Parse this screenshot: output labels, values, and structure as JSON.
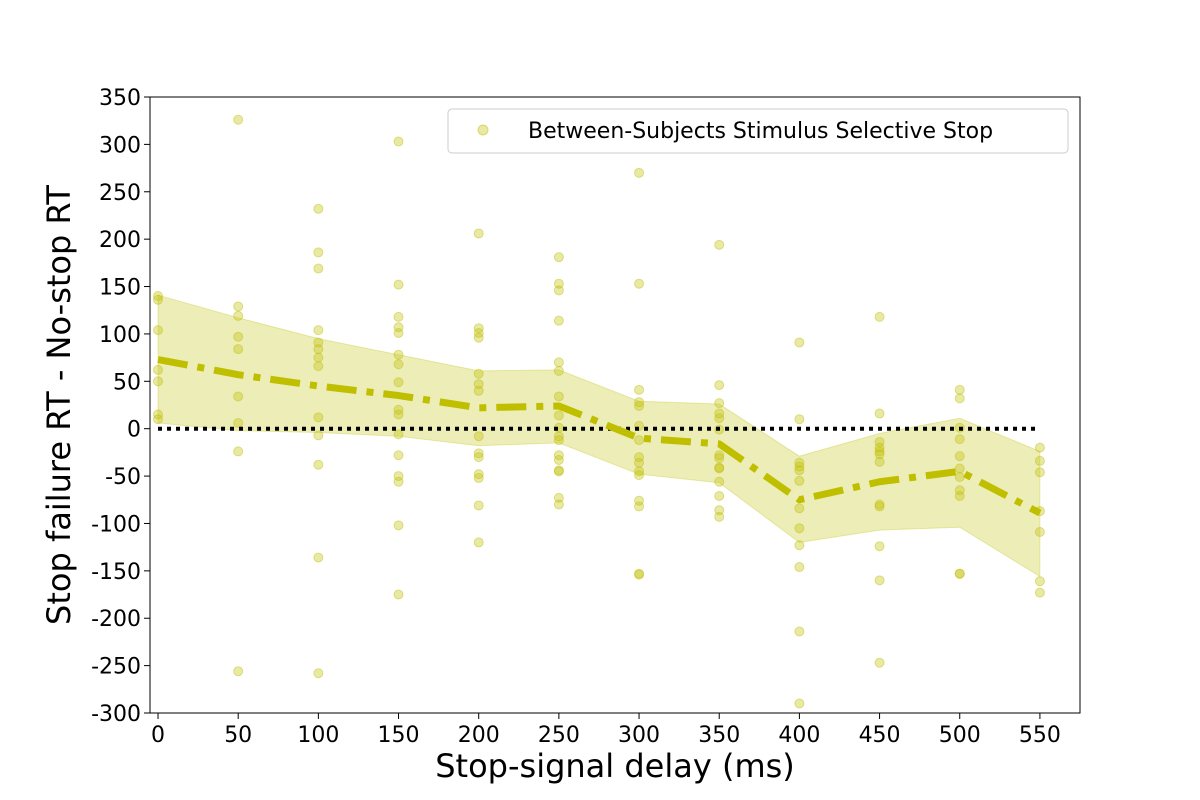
{
  "chart_data": {
    "type": "scatter",
    "xlabel": "Stop-signal delay (ms)",
    "ylabel": "Stop failure RT - No-stop RT",
    "xlim": [
      -5,
      575
    ],
    "ylim": [
      -300,
      350
    ],
    "x_ticks": [
      0,
      50,
      100,
      150,
      200,
      250,
      300,
      350,
      400,
      450,
      500,
      550
    ],
    "y_ticks": [
      -300,
      -250,
      -200,
      -150,
      -100,
      -50,
      0,
      50,
      100,
      150,
      200,
      250,
      300,
      350
    ],
    "grid": false,
    "legend": {
      "position": "top-right",
      "entries": [
        "Between-Subjects Stimulus Selective Stop"
      ]
    },
    "colors": {
      "series": "#bfbf00",
      "reference_line": "#000000"
    },
    "reference_line": {
      "y": 0,
      "x_range": [
        0,
        550
      ],
      "style": "dotted"
    },
    "series": [
      {
        "name": "Between-Subjects Stimulus Selective Stop",
        "points": [
          [
            0,
            140
          ],
          [
            0,
            136
          ],
          [
            0,
            104
          ],
          [
            0,
            62
          ],
          [
            0,
            50
          ],
          [
            0,
            15
          ],
          [
            0,
            10
          ],
          [
            50,
            326
          ],
          [
            50,
            129
          ],
          [
            50,
            119
          ],
          [
            50,
            97
          ],
          [
            50,
            84
          ],
          [
            50,
            34
          ],
          [
            50,
            6
          ],
          [
            50,
            -24
          ],
          [
            50,
            -256
          ],
          [
            100,
            232
          ],
          [
            100,
            186
          ],
          [
            100,
            169
          ],
          [
            100,
            104
          ],
          [
            100,
            91
          ],
          [
            100,
            84
          ],
          [
            100,
            75
          ],
          [
            100,
            66
          ],
          [
            100,
            12
          ],
          [
            100,
            -7
          ],
          [
            100,
            -38
          ],
          [
            100,
            -136
          ],
          [
            100,
            -258
          ],
          [
            150,
            303
          ],
          [
            150,
            152
          ],
          [
            150,
            118
          ],
          [
            150,
            107
          ],
          [
            150,
            101
          ],
          [
            150,
            78
          ],
          [
            150,
            68
          ],
          [
            150,
            49
          ],
          [
            150,
            20
          ],
          [
            150,
            15
          ],
          [
            150,
            -6
          ],
          [
            150,
            -28
          ],
          [
            150,
            -50
          ],
          [
            150,
            -56
          ],
          [
            150,
            -102
          ],
          [
            150,
            -175
          ],
          [
            200,
            206
          ],
          [
            200,
            106
          ],
          [
            200,
            101
          ],
          [
            200,
            96
          ],
          [
            200,
            58
          ],
          [
            200,
            47
          ],
          [
            200,
            40
          ],
          [
            200,
            -8
          ],
          [
            200,
            -26
          ],
          [
            200,
            -30
          ],
          [
            200,
            -48
          ],
          [
            200,
            -52
          ],
          [
            200,
            -81
          ],
          [
            200,
            -120
          ],
          [
            250,
            181
          ],
          [
            250,
            153
          ],
          [
            250,
            146
          ],
          [
            250,
            114
          ],
          [
            250,
            70
          ],
          [
            250,
            61
          ],
          [
            250,
            34
          ],
          [
            250,
            14
          ],
          [
            250,
            1
          ],
          [
            250,
            -8
          ],
          [
            250,
            -12
          ],
          [
            250,
            -28
          ],
          [
            250,
            -33
          ],
          [
            250,
            -44
          ],
          [
            250,
            -45
          ],
          [
            250,
            -73
          ],
          [
            250,
            -80
          ],
          [
            300,
            270
          ],
          [
            300,
            153
          ],
          [
            300,
            41
          ],
          [
            300,
            28
          ],
          [
            300,
            24
          ],
          [
            300,
            3
          ],
          [
            300,
            -12
          ],
          [
            300,
            -30
          ],
          [
            300,
            -36
          ],
          [
            300,
            -45
          ],
          [
            300,
            -49
          ],
          [
            300,
            -76
          ],
          [
            300,
            -82
          ],
          [
            300,
            -153
          ],
          [
            300,
            -154
          ],
          [
            350,
            194
          ],
          [
            350,
            46
          ],
          [
            350,
            27
          ],
          [
            350,
            16
          ],
          [
            350,
            11
          ],
          [
            350,
            -1
          ],
          [
            350,
            -28
          ],
          [
            350,
            -31
          ],
          [
            350,
            -41
          ],
          [
            350,
            -42
          ],
          [
            350,
            -56
          ],
          [
            350,
            -71
          ],
          [
            350,
            -86
          ],
          [
            350,
            -93
          ],
          [
            400,
            91
          ],
          [
            400,
            10
          ],
          [
            400,
            -36
          ],
          [
            400,
            -40
          ],
          [
            400,
            -44
          ],
          [
            400,
            -55
          ],
          [
            400,
            -84
          ],
          [
            400,
            -105
          ],
          [
            400,
            -123
          ],
          [
            400,
            -146
          ],
          [
            400,
            -214
          ],
          [
            400,
            -290
          ],
          [
            450,
            118
          ],
          [
            450,
            16
          ],
          [
            450,
            -14
          ],
          [
            450,
            -20
          ],
          [
            450,
            -24
          ],
          [
            450,
            -27
          ],
          [
            450,
            -35
          ],
          [
            450,
            -80
          ],
          [
            450,
            -82
          ],
          [
            450,
            -124
          ],
          [
            450,
            -160
          ],
          [
            450,
            -247
          ],
          [
            500,
            41
          ],
          [
            500,
            32
          ],
          [
            500,
            1
          ],
          [
            500,
            -11
          ],
          [
            500,
            -29
          ],
          [
            500,
            -42
          ],
          [
            500,
            -51
          ],
          [
            500,
            -65
          ],
          [
            500,
            -71
          ],
          [
            500,
            -153
          ],
          [
            500,
            -153
          ],
          [
            550,
            -20
          ],
          [
            550,
            -34
          ],
          [
            550,
            -46
          ],
          [
            550,
            -87
          ],
          [
            550,
            -109
          ],
          [
            550,
            -161
          ],
          [
            550,
            -173
          ]
        ]
      }
    ],
    "mean_line": {
      "x": [
        0,
        50,
        100,
        150,
        200,
        250,
        300,
        350,
        400,
        450,
        500,
        550
      ],
      "y": [
        73,
        57,
        45,
        35,
        22,
        24,
        -10,
        -16,
        -75,
        -56,
        -45,
        -89
      ],
      "style": "dash-dot"
    },
    "ci_band": {
      "x": [
        0,
        50,
        100,
        150,
        200,
        250,
        300,
        350,
        400,
        450,
        500,
        550
      ],
      "upper": [
        141,
        117,
        95,
        78,
        61,
        62,
        29,
        26,
        -29,
        -5,
        11,
        -24
      ],
      "lower": [
        6,
        -2,
        -4,
        -8,
        -18,
        -15,
        -48,
        -57,
        -120,
        -107,
        -104,
        -156
      ]
    }
  }
}
